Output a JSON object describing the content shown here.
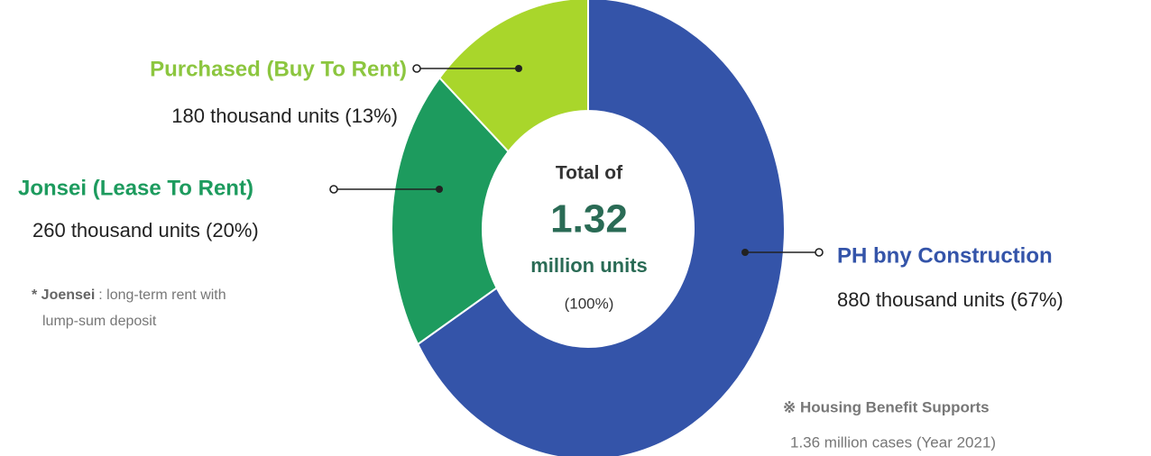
{
  "chart_data": {
    "type": "pie",
    "donut": true,
    "categories": [
      "PH bny Construction",
      "Jonsei (Lease To Rent)",
      "Purchased (Buy To Rent)"
    ],
    "values": [
      880,
      260,
      180
    ],
    "value_labels": [
      "880 thousand units (67%)",
      "260 thousand units (20%)",
      "180 thousand units (13%)"
    ],
    "colors": [
      "#3454a9",
      "#1d9b5e",
      "#a9d62b"
    ],
    "label_colors": [
      "#3454a9",
      "#1d9b5e",
      "#8cc63f"
    ],
    "center": {
      "line1": "Total of",
      "total": "1.32",
      "unit": "million units",
      "share": "(100%)"
    },
    "note": {
      "term": "* Joensei",
      "lines": [
        ": long-term rent with",
        "lump-sum deposit"
      ]
    },
    "footnote": {
      "title": "※ Housing Benefit Supports",
      "text": "1.36 million cases (Year 2021)"
    }
  }
}
